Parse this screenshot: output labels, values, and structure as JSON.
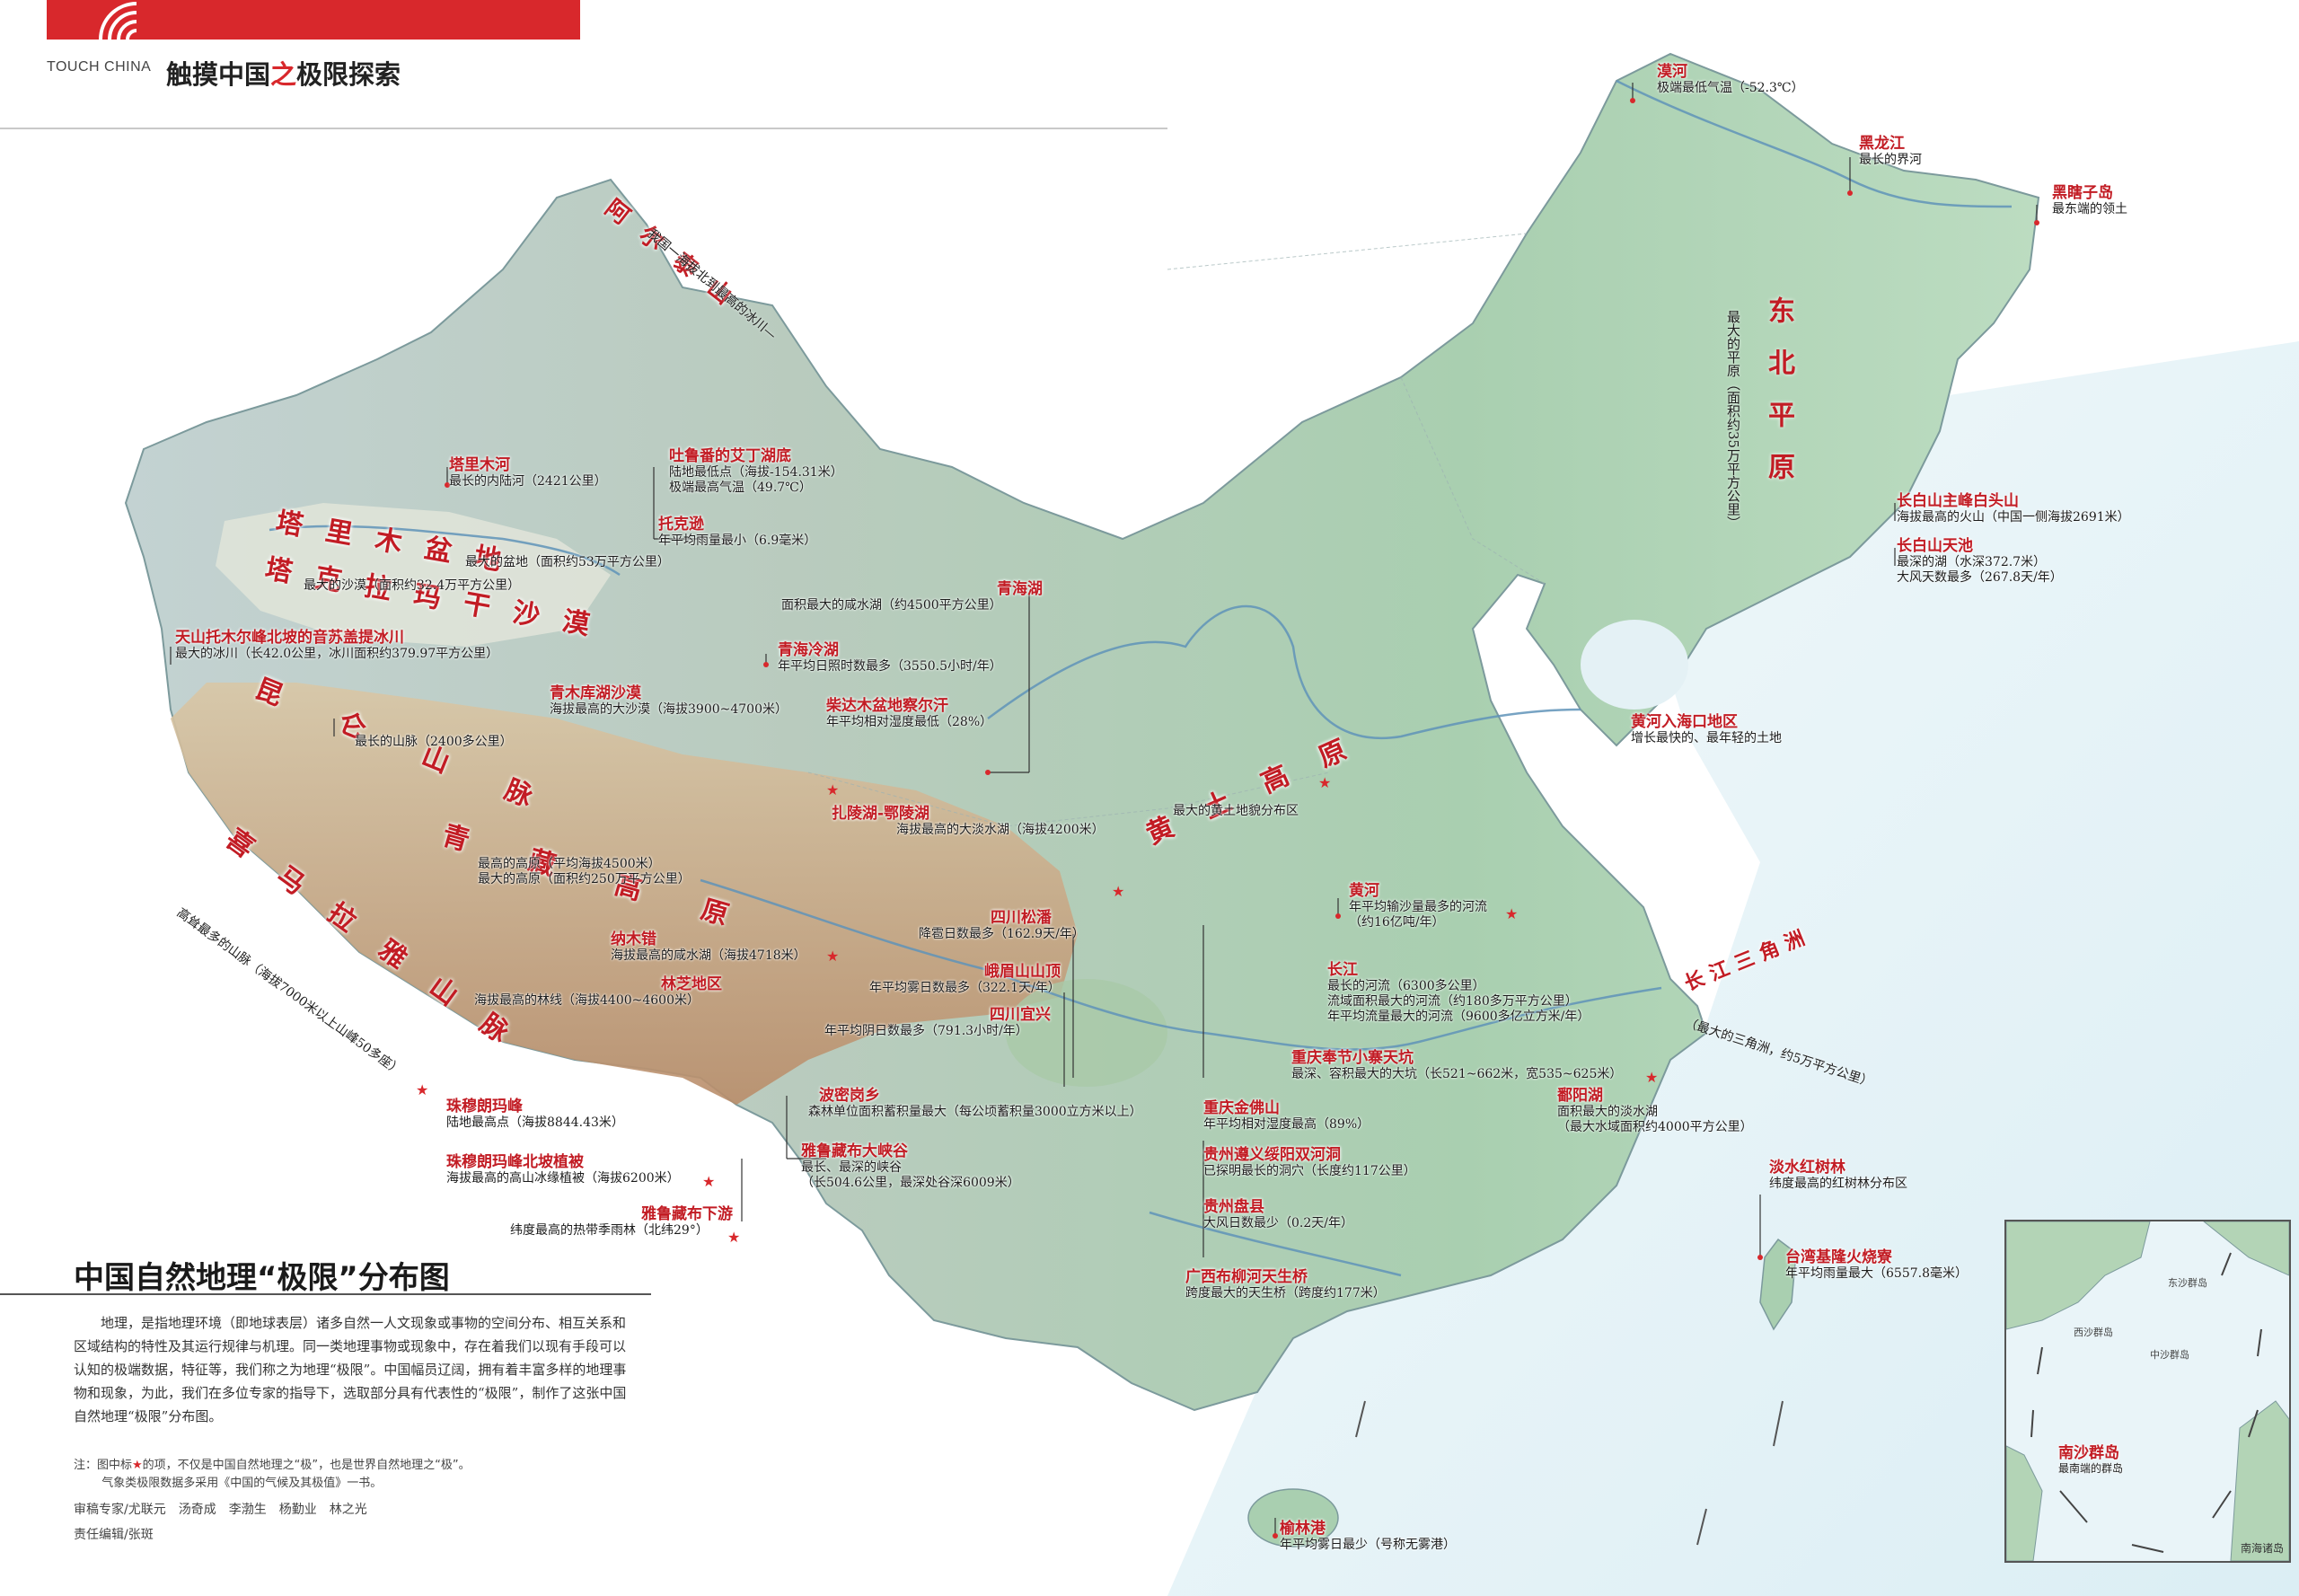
{
  "header": {
    "en_title": "TOUCH CHINA",
    "cn_title_a": "触摸中国",
    "cn_title_b": "之",
    "cn_title_c": "极限探索"
  },
  "title": "中国自然地理“极限”分布图",
  "intro": "地理，是指地理环境（即地球表层）诸多自然一人文现象或事物的空间分布、相互关系和区域结构的特性及其运行规律与机理。同一类地理事物或现象中，存在着我们以现有手段可以认知的极端数据，特征等，我们称之为地理“极限”。中国幅员辽阔，拥有着丰富多样的地理事物和现象，为此，我们在多位专家的指导下，选取部分具有代表性的“极限”，制作了这张中国自然地理“极限”分布图。",
  "note_prefix": "注：图中标",
  "note_star": "★",
  "note_rest": "的项，不仅是中国自然地理之“极”，也是世界自然地理之“极”。",
  "note_line2": "气象类极限数据多采用《中国的气候及其极值》一书。",
  "credits_reviewers": "审稿专家/尤联元　汤奇成　李渤生　杨勤业　林之光",
  "credits_editor": "责任编辑/张斑",
  "colors": {
    "accent": "#d8282c",
    "land": "#b9d6bc",
    "highland": "#c9a07c",
    "sea": "#e6f2f6"
  },
  "big_labels": {
    "altai": "阿尔泰山",
    "altai_desc": "我国一海拔北到最高的冰川—",
    "tarim": "塔里木盆地",
    "taklamakan": "塔克拉玛干沙漠",
    "kunlun": "昆仑山脉",
    "qingzang": "青藏高原",
    "himalaya": "喜马拉雅山脉",
    "himalaya_desc": "高耸最多的山脉（海拔7000米以上山峰50多座）",
    "loess": "黄土高原",
    "dongbei": "东北平原",
    "dongbei_desc": "最大的平原（面积约35万平方公里）",
    "yangtze_delta": "长江三角洲",
    "yangtze_delta_desc": "（最大的三角洲，约5万平方公里）"
  },
  "labels": [
    {
      "title": "漠河",
      "desc": "极端最低气温（-52.3℃）"
    },
    {
      "title": "黑龙江",
      "desc": "最长的界河"
    },
    {
      "title": "黑瞎子岛",
      "desc": "最东端的领土"
    },
    {
      "title": "塔里木河",
      "desc": "最长的内陆河（2421公里）"
    },
    {
      "title": "吐鲁番的艾丁湖底",
      "desc": "陆地最低点（海拔-154.31米）",
      "desc2": "极端最高气温（49.7℃）"
    },
    {
      "title": "托克逊",
      "desc": "年平均雨量最小（6.9毫米）"
    },
    {
      "title": "",
      "desc": "最大的盆地（面积约53万平方公里）"
    },
    {
      "title": "",
      "desc": "最大的沙漠（面积约32.4万平方公里）"
    },
    {
      "title": "青海湖",
      "desc": "面积最大的咸水湖（约4500平方公里）"
    },
    {
      "title": "青海冷湖",
      "desc": "年平均日照时数最多（3550.5小时/年）"
    },
    {
      "title": "天山托木尔峰北坡的音苏盖提冰川",
      "desc": "最大的冰川（长42.0公里，冰川面积约379.97平方公里）"
    },
    {
      "title": "柴达木盆地察尔汗",
      "desc": "年平均相对湿度最低（28%）"
    },
    {
      "title": "青木库湖沙漠",
      "desc": "海拔最高的大沙漠（海拔3900~4700米）"
    },
    {
      "title": "",
      "desc": "最长的山脉（2400多公里）"
    },
    {
      "title": "扎陵湖-鄂陵湖",
      "desc": "海拔最高的大淡水湖（海拔4200米）"
    },
    {
      "title": "",
      "desc": "最高的高原（平均海拔4500米）",
      "desc2": "最大的高原（面积约250万平方公里）"
    },
    {
      "title": "四川松潘",
      "desc": "降雹日数最多（162.9天/年）"
    },
    {
      "title": "纳木错",
      "desc": "海拔最高的咸水湖（海拔4718米）"
    },
    {
      "title": "峨眉山山顶",
      "desc": "年平均雾日数最多（322.1天/年）"
    },
    {
      "title": "林芝地区",
      "desc": "海拔最高的林线（海拔4400~4600米）"
    },
    {
      "title": "四川宜兴",
      "desc": "年平均阴日数最多（791.3小时/年）"
    },
    {
      "title": "珠穆朗玛峰",
      "desc": "陆地最高点（海拔8844.43米）"
    },
    {
      "title": "珠穆朗玛峰北坡植被",
      "desc": "海拔最高的高山冰缘植被（海拔6200米）"
    },
    {
      "title": "雅鲁藏布下游",
      "desc": "纬度最高的热带季雨林（北纬29°）"
    },
    {
      "title": "波密岗乡",
      "desc": "森林单位面积蓄积量最大（每公顷蓄积量3000立方米以上）"
    },
    {
      "title": "雅鲁藏布大峡谷",
      "desc": "最长、最深的峡谷",
      "desc2": "（长504.6公里，最深处谷深6009米）"
    },
    {
      "title": "",
      "desc": "最大的黄土地貌分布区"
    },
    {
      "title": "黄河入海口地区",
      "desc": "增长最快的、最年轻的土地"
    },
    {
      "title": "黄河",
      "desc": "年平均输沙量最多的河流",
      "desc2": "（约16亿吨/年）"
    },
    {
      "title": "长江",
      "desc": "最长的河流（6300多公里）",
      "desc2": "流域面积最大的河流（约180多万平方公里）",
      "desc3": "年平均流量最大的河流（9600多亿立方米/年）"
    },
    {
      "title": "重庆奉节小寨天坑",
      "desc": "最深、容积最大的大坑（长521~662米，宽535~625米）"
    },
    {
      "title": "重庆金佛山",
      "desc": "年平均相对湿度最高（89%）"
    },
    {
      "title": "鄱阳湖",
      "desc": "面积最大的淡水湖",
      "desc2": "（最大水域面积约4000平方公里）"
    },
    {
      "title": "贵州遵义绥阳双河洞",
      "desc": "已探明最长的洞穴（长度约117公里）"
    },
    {
      "title": "贵州盘县",
      "desc": "大风日数最少（0.2天/年）"
    },
    {
      "title": "淡水红树林",
      "desc": "纬度最高的红树林分布区"
    },
    {
      "title": "广西布柳河天生桥",
      "desc": "跨度最大的天生桥（跨度约177米）"
    },
    {
      "title": "台湾基隆火烧寮",
      "desc": "年平均雨量最大（6557.8毫米）"
    },
    {
      "title": "榆林港",
      "desc": "年平均雾日最少（号称无雾港）"
    },
    {
      "title": "长白山主峰白头山",
      "desc": "海拔最高的火山（中国一侧海拔2691米）"
    },
    {
      "title": "长白山天池",
      "desc": "最深的湖（水深372.7米）",
      "desc2": "大风天数最多（267.8天/年）"
    }
  ],
  "inset": {
    "spratly_title": "南沙群岛",
    "spratly_desc": "最南端的群岛",
    "caption": "南海诸岛",
    "dongsha": "东沙群岛",
    "xisha": "西沙群岛",
    "zhongsha": "中沙群岛"
  }
}
